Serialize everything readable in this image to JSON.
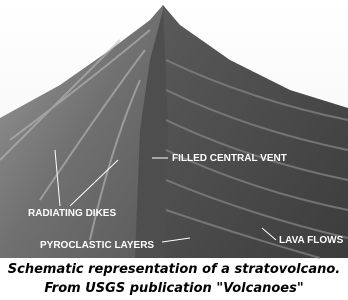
{
  "labels": {
    "vent": "FILLED CENTRAL VENT",
    "dikes": "RADIATING DIKES",
    "pyroclastic": "PYROCLASTIC LAYERS",
    "lava": "LAVA FLOWS"
  },
  "caption": {
    "line1": "Schematic representation of a stratovolcano.",
    "line2": "From USGS publication \"Volcanoes\""
  }
}
